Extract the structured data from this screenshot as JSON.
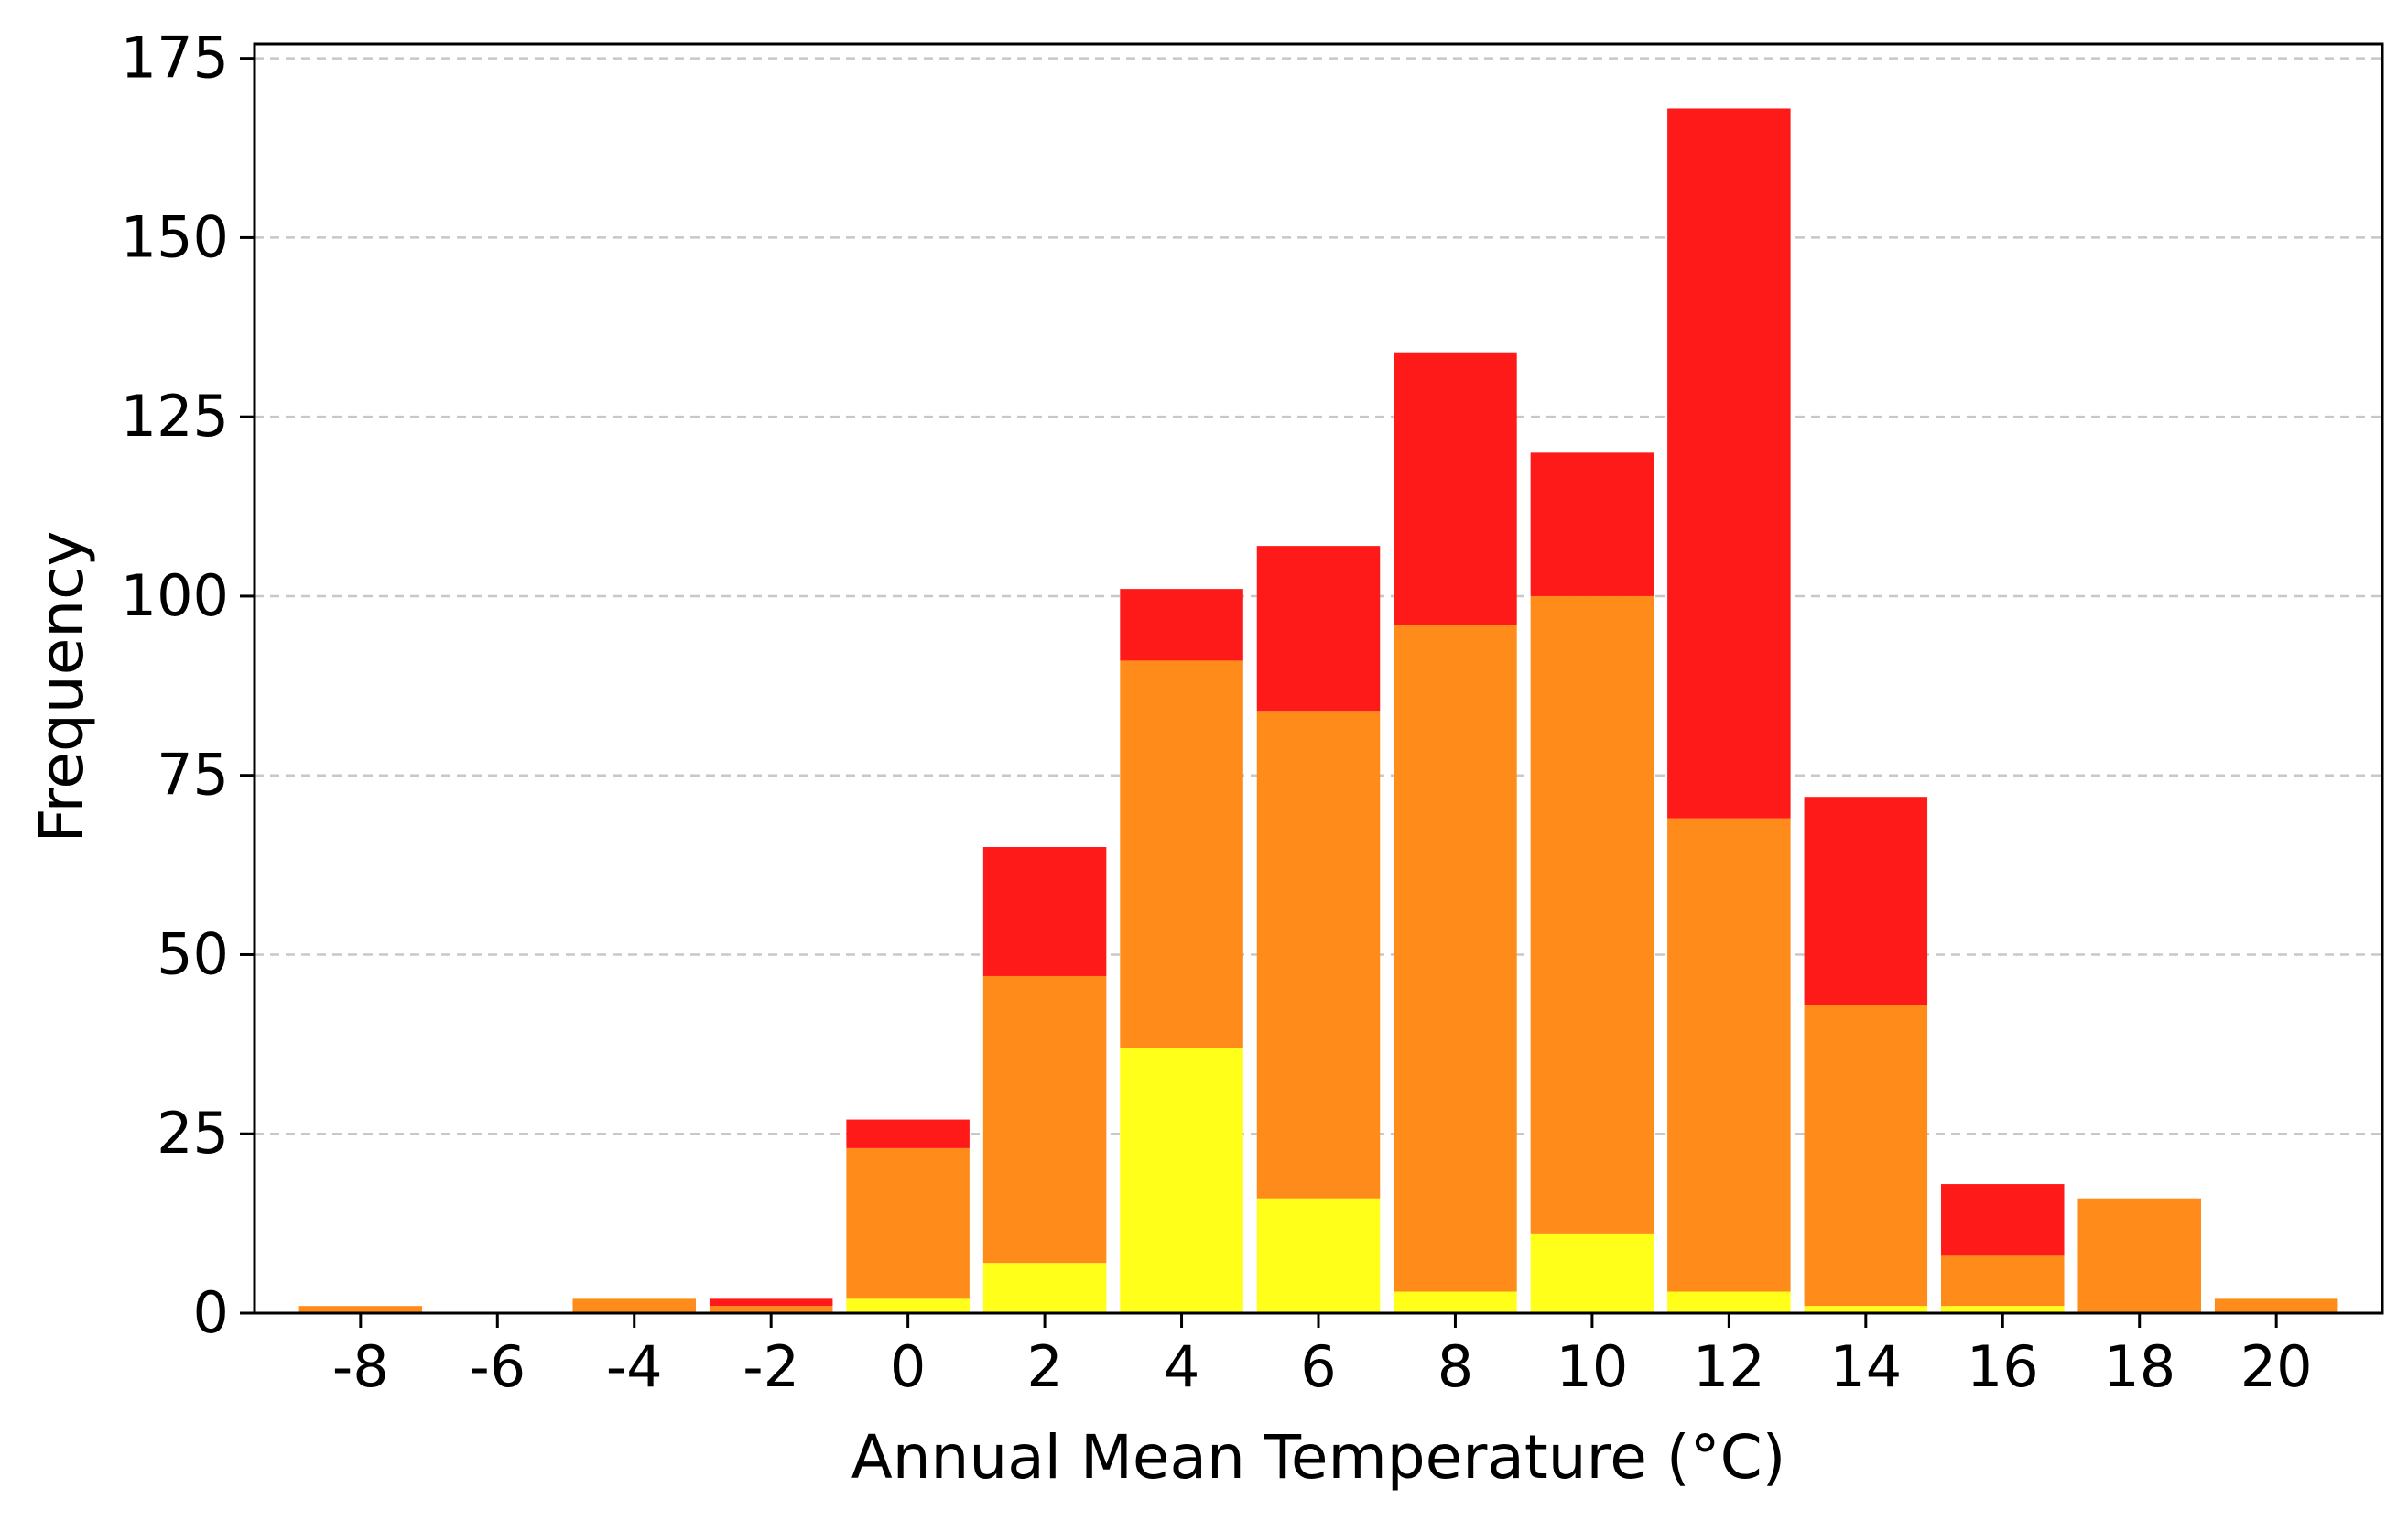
{
  "chart_data": {
    "type": "bar",
    "stacked": true,
    "title": "",
    "xlabel": "Annual Mean Temperature (°C)",
    "ylabel": "Frequency",
    "categories": [
      "-8",
      "-6",
      "-4",
      "-2",
      "0",
      "2",
      "4",
      "6",
      "8",
      "10",
      "12",
      "14",
      "16",
      "18",
      "20"
    ],
    "ylim": [
      0,
      177
    ],
    "yticks": [
      0,
      25,
      50,
      75,
      100,
      125,
      150,
      175
    ],
    "grid": "y-dashed",
    "legend": "none",
    "series": [
      {
        "color": "#ffff1a",
        "values": [
          0,
          0,
          0,
          0,
          2,
          7,
          37,
          16,
          3,
          11,
          3,
          1,
          1,
          0,
          0
        ]
      },
      {
        "color": "#ff8c1a",
        "values": [
          1,
          0,
          2,
          1,
          21,
          40,
          54,
          68,
          93,
          89,
          66,
          42,
          7,
          16,
          2
        ]
      },
      {
        "color": "#ff1a1a",
        "values": [
          0,
          0,
          0,
          1,
          4,
          18,
          10,
          23,
          38,
          20,
          99,
          29,
          10,
          0,
          0
        ]
      }
    ]
  }
}
